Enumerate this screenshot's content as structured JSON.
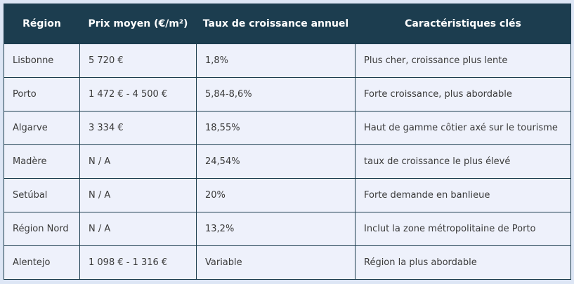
{
  "table": {
    "headers": [
      "Région",
      "Prix moyen (€/m²)",
      "Taux de croissance annuel",
      "Caractéristiques clés"
    ],
    "rows": [
      [
        "Lisbonne",
        "5 720 €",
        "1,8%",
        "Plus cher, croissance plus lente"
      ],
      [
        "Porto",
        "1 472 € - 4 500 €",
        "5,84-8,6%",
        "Forte croissance, plus abordable"
      ],
      [
        "Algarve",
        "3 334 €",
        "18,55%",
        "Haut de gamme côtier axé sur le tourisme"
      ],
      [
        "Madère",
        "N / A",
        "24,54%",
        "taux de croissance le plus élevé"
      ],
      [
        "Setúbal",
        "N / A",
        "20%",
        "Forte demande en banlieue"
      ],
      [
        "Région Nord",
        "N / A",
        "13,2%",
        "Inclut la zone métropolitaine de Porto"
      ],
      [
        "Alentejo",
        "1 098 € - 1 316 €",
        "Variable",
        "Région la plus abordable"
      ]
    ]
  }
}
